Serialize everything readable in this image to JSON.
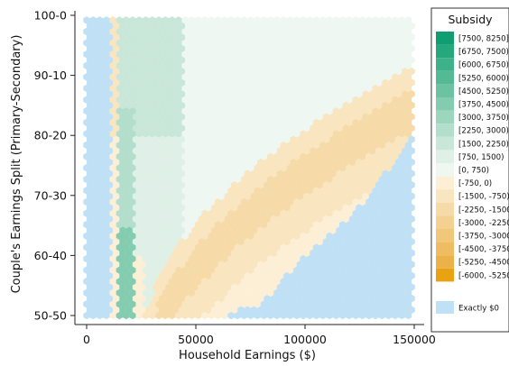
{
  "chart_data": {
    "type": "heatmap",
    "title": "",
    "xlabel": "Household Earnings ($)",
    "ylabel": "Couple's Earnings Split (Primary-Secondary)",
    "xlim": [
      0,
      150000
    ],
    "ylim": [
      50,
      100
    ],
    "x_ticks": [
      {
        "value": 0,
        "label": "0"
      },
      {
        "value": 50000,
        "label": "50000"
      },
      {
        "value": 100000,
        "label": "100000"
      },
      {
        "value": 150000,
        "label": "150000"
      }
    ],
    "y_ticks": [
      {
        "value": 100,
        "label": "100-0"
      },
      {
        "value": 90,
        "label": "90-10"
      },
      {
        "value": 80,
        "label": "80-20"
      },
      {
        "value": 70,
        "label": "70-30"
      },
      {
        "value": 60,
        "label": "60-40"
      },
      {
        "value": 50,
        "label": "50-50"
      }
    ],
    "grid": false,
    "legend": {
      "title": "Subsidy",
      "placement": "right",
      "entries": [
        {
          "label": "[7500, 8250]",
          "color": "#0e9e72"
        },
        {
          "label": "[6750, 7500)",
          "color": "#26a87d"
        },
        {
          "label": "[6000, 6750)",
          "color": "#3db189"
        },
        {
          "label": "[5250, 6000)",
          "color": "#54ba95"
        },
        {
          "label": "[4500, 5250)",
          "color": "#6bc3a2"
        },
        {
          "label": "[3750, 4500)",
          "color": "#83ccaf"
        },
        {
          "label": "[3000, 3750)",
          "color": "#9bd6bd"
        },
        {
          "label": "[2250, 3000)",
          "color": "#b2decb"
        },
        {
          "label": "[1500, 2250)",
          "color": "#c9e7d9"
        },
        {
          "label": "[750, 1500)",
          "color": "#dff0e7"
        },
        {
          "label": "[0, 750)",
          "color": "#eef7f2"
        },
        {
          "label": "[-750, 0)",
          "color": "#fcefd6"
        },
        {
          "label": "[-1500, -750)",
          "color": "#f9e5bf"
        },
        {
          "label": "[-2250, -1500)",
          "color": "#f6dba8"
        },
        {
          "label": "[-3000, -2250)",
          "color": "#f4d191"
        },
        {
          "label": "[-3750, -3000)",
          "color": "#f1c77a"
        },
        {
          "label": "[-4500, -3750)",
          "color": "#efbc62"
        },
        {
          "label": "[-5250, -4500)",
          "color": "#ecb24a"
        },
        {
          "label": "[-6000, -5250)",
          "color": "#e9a312"
        },
        {
          "label": "Exactly $0",
          "color": "#bfe0f5"
        }
      ]
    },
    "regions": [
      {
        "label": "Exactly $0",
        "description": "x < ~12000, all splits"
      },
      {
        "label": "[3000, 3750)",
        "description": "x ~15000-25000, lower splits, dark green column"
      },
      {
        "label": "[1500, 2250)",
        "description": "x ~18000-45000, upper splits, green column"
      },
      {
        "label": "[0, 750)",
        "description": "x ~45000-150000, above the orange band"
      },
      {
        "label": "[-2250, -1500)",
        "description": "curved band from x ~25000 to 150000"
      },
      {
        "label": "Exactly $0",
        "description": "lower-right corner, x > ~75000"
      }
    ],
    "band_boundaries": {
      "x": [
        20000,
        40000,
        60000,
        80000,
        100000,
        120000,
        150000
      ],
      "outer_band_low": [
        50,
        56,
        64,
        71,
        76,
        80,
        84
      ],
      "outer_band_mid": [
        50,
        50,
        56,
        62,
        68,
        73,
        78
      ],
      "lower_zero_region_top": [
        50,
        50,
        50,
        52,
        60,
        66,
        80
      ]
    }
  }
}
